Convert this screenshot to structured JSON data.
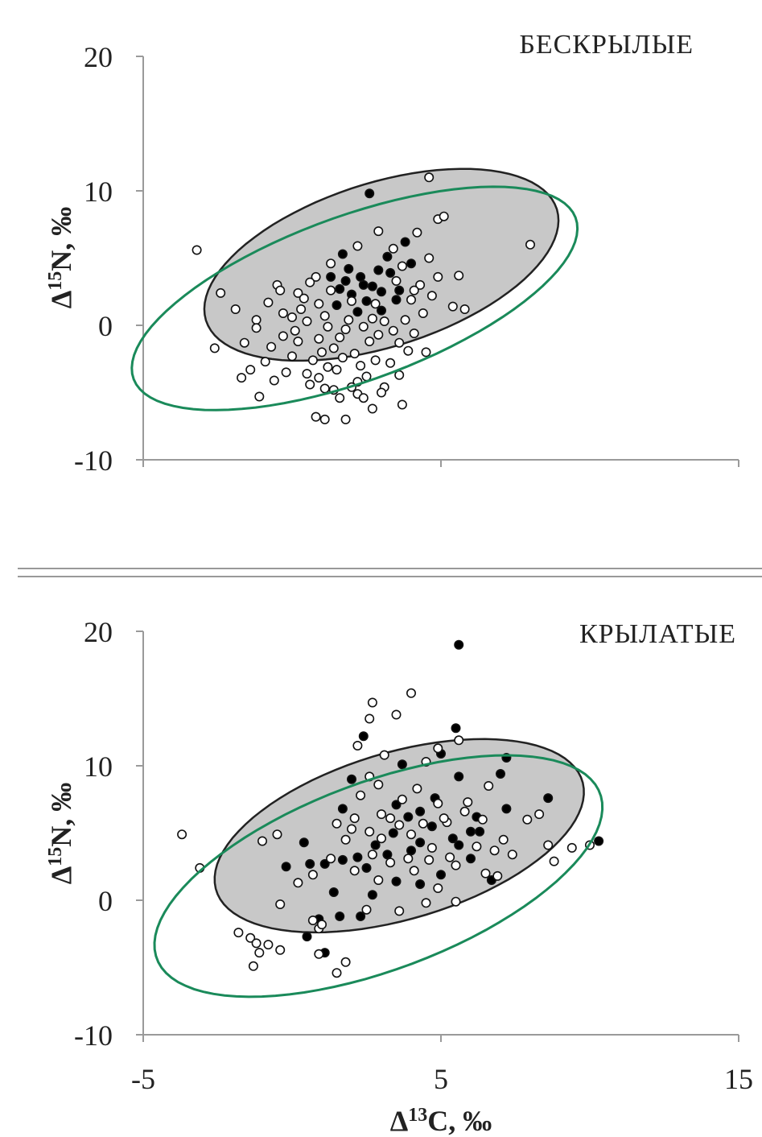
{
  "chart_data": [
    {
      "type": "scatter",
      "title": "БЕСКРЫЛЫЕ",
      "ylabel_delta": "Δ",
      "ylabel_sup": "15",
      "ylabel_rest": "N, ‰",
      "xlim": [
        -5,
        15
      ],
      "ylim": [
        -10,
        20
      ],
      "yticks": [
        "20",
        "10",
        "0",
        "-10"
      ],
      "colors": {
        "green_ellipse": "#1a8a5a",
        "gray_ellipse_fill": "#c8c8c8",
        "filled_point": "#000000",
        "open_point": "#ffffff"
      },
      "ellipses": [
        {
          "name": "green",
          "cx": 2.1,
          "cy": 2.0,
          "rx": 8.5,
          "ry": 3.8,
          "angle_deg": 32
        },
        {
          "name": "gray",
          "cx": 3.0,
          "cy": 4.5,
          "rx": 6.6,
          "ry": 3.8,
          "angle_deg": 32
        }
      ],
      "series": [
        {
          "marker": "filled",
          "points": [
            [
              2.6,
              9.8
            ],
            [
              1.7,
              5.3
            ],
            [
              3.8,
              6.2
            ],
            [
              4.0,
              4.6
            ],
            [
              1.3,
              3.6
            ],
            [
              2.0,
              2.3
            ],
            [
              2.4,
              3.0
            ],
            [
              2.9,
              4.1
            ],
            [
              3.3,
              3.9
            ],
            [
              3.6,
              2.6
            ],
            [
              1.5,
              1.5
            ],
            [
              2.2,
              1.0
            ],
            [
              3.0,
              1.1
            ],
            [
              2.7,
              2.9
            ],
            [
              1.9,
              4.2
            ],
            [
              3.2,
              5.1
            ],
            [
              1.6,
              2.7
            ],
            [
              2.5,
              1.8
            ],
            [
              3.5,
              1.9
            ],
            [
              1.8,
              3.3
            ],
            [
              2.3,
              3.6
            ],
            [
              3.0,
              2.5
            ]
          ]
        },
        {
          "marker": "open",
          "points": [
            [
              -3.2,
              5.6
            ],
            [
              -2.4,
              2.4
            ],
            [
              -1.9,
              1.2
            ],
            [
              -2.6,
              -1.7
            ],
            [
              -1.2,
              0.4
            ],
            [
              -0.8,
              1.7
            ],
            [
              0.2,
              2.4
            ],
            [
              -0.5,
              3.0
            ],
            [
              0.8,
              3.6
            ],
            [
              1.3,
              4.6
            ],
            [
              2.9,
              7.0
            ],
            [
              4.9,
              7.9
            ],
            [
              5.1,
              8.1
            ],
            [
              4.6,
              11.0
            ],
            [
              8.0,
              6.0
            ],
            [
              5.6,
              3.7
            ],
            [
              5.4,
              1.4
            ],
            [
              5.8,
              1.2
            ],
            [
              4.5,
              -2.0
            ],
            [
              3.7,
              -5.9
            ],
            [
              2.7,
              -6.2
            ],
            [
              2.2,
              -5.1
            ],
            [
              1.1,
              -7.0
            ],
            [
              1.8,
              -7.0
            ],
            [
              0.8,
              -6.8
            ],
            [
              -1.1,
              -5.3
            ],
            [
              -1.4,
              -3.3
            ],
            [
              -1.6,
              -1.3
            ],
            [
              -1.2,
              -0.2
            ],
            [
              -0.7,
              -1.6
            ],
            [
              0.0,
              -2.3
            ],
            [
              0.5,
              -3.6
            ],
            [
              0.6,
              -4.4
            ],
            [
              1.1,
              -4.7
            ],
            [
              1.4,
              -4.8
            ],
            [
              1.6,
              -5.4
            ],
            [
              2.2,
              -4.2
            ],
            [
              2.5,
              -3.8
            ],
            [
              3.1,
              -4.6
            ],
            [
              3.6,
              -3.7
            ],
            [
              0.1,
              -0.4
            ],
            [
              0.5,
              0.3
            ],
            [
              0.9,
              -1.0
            ],
            [
              1.1,
              0.7
            ],
            [
              1.4,
              -1.7
            ],
            [
              1.8,
              -0.3
            ],
            [
              2.1,
              -2.1
            ],
            [
              2.6,
              -1.2
            ],
            [
              2.9,
              -0.7
            ],
            [
              3.1,
              0.3
            ],
            [
              3.4,
              -0.4
            ],
            [
              3.8,
              0.4
            ],
            [
              4.1,
              -0.6
            ],
            [
              4.4,
              0.9
            ],
            [
              4.7,
              2.2
            ],
            [
              4.3,
              3.0
            ],
            [
              4.0,
              1.9
            ],
            [
              3.7,
              4.4
            ],
            [
              4.6,
              5.0
            ],
            [
              0.3,
              1.2
            ],
            [
              0.0,
              0.6
            ],
            [
              -0.3,
              -0.8
            ],
            [
              0.7,
              -2.6
            ],
            [
              1.2,
              -3.1
            ],
            [
              1.7,
              -2.4
            ],
            [
              2.3,
              -3.0
            ],
            [
              2.8,
              -2.6
            ],
            [
              3.3,
              -2.8
            ],
            [
              3.6,
              -1.3
            ],
            [
              0.4,
              2.0
            ],
            [
              0.9,
              1.6
            ],
            [
              1.3,
              2.6
            ],
            [
              0.6,
              3.2
            ],
            [
              -0.9,
              -2.7
            ],
            [
              -0.6,
              -4.1
            ],
            [
              -0.2,
              -3.5
            ],
            [
              0.9,
              -3.9
            ],
            [
              1.5,
              -3.3
            ],
            [
              2.0,
              -4.6
            ],
            [
              2.4,
              -5.4
            ],
            [
              3.0,
              -5.0
            ],
            [
              -1.7,
              -3.9
            ],
            [
              -0.3,
              0.9
            ],
            [
              2.0,
              1.8
            ],
            [
              2.7,
              0.5
            ],
            [
              3.9,
              -1.9
            ],
            [
              4.9,
              3.6
            ],
            [
              4.2,
              6.9
            ],
            [
              3.4,
              5.7
            ],
            [
              2.2,
              5.9
            ],
            [
              1.6,
              -0.9
            ],
            [
              2.4,
              -0.1
            ],
            [
              1.0,
              -2.0
            ],
            [
              0.2,
              -1.2
            ],
            [
              -0.4,
              2.6
            ],
            [
              4.1,
              2.6
            ],
            [
              3.5,
              3.3
            ],
            [
              2.8,
              1.6
            ],
            [
              1.9,
              0.4
            ],
            [
              1.2,
              -0.1
            ]
          ]
        }
      ]
    },
    {
      "type": "scatter",
      "title": "КРЫЛАТЫЕ",
      "ylabel_delta": "Δ",
      "ylabel_sup": "15",
      "ylabel_rest": "N, ‰",
      "xlabel_delta": "Δ",
      "xlabel_sup": "13",
      "xlabel_rest": "C, ‰",
      "xlim": [
        -5,
        15
      ],
      "ylim": [
        -10,
        20
      ],
      "xticks": [
        "-5",
        "5",
        "15"
      ],
      "yticks": [
        "20",
        "10",
        "0",
        "-10"
      ],
      "colors": {
        "green_ellipse": "#1a8a5a",
        "gray_ellipse_fill": "#c8c8c8",
        "filled_point": "#000000",
        "open_point": "#ffffff"
      },
      "ellipses": [
        {
          "name": "green",
          "cx": 2.9,
          "cy": 1.8,
          "rx": 8.6,
          "ry": 4.3,
          "angle_deg": 34
        },
        {
          "name": "gray",
          "cx": 3.6,
          "cy": 4.8,
          "rx": 6.8,
          "ry": 3.9,
          "angle_deg": 30
        }
      ],
      "series": [
        {
          "marker": "filled",
          "points": [
            [
              5.6,
              19.0
            ],
            [
              5.5,
              12.8
            ],
            [
              2.4,
              12.2
            ],
            [
              7.2,
              10.6
            ],
            [
              5.0,
              10.9
            ],
            [
              5.6,
              9.2
            ],
            [
              7.0,
              9.4
            ],
            [
              2.0,
              9.0
            ],
            [
              1.7,
              6.8
            ],
            [
              3.5,
              7.1
            ],
            [
              4.8,
              7.6
            ],
            [
              6.2,
              6.2
            ],
            [
              7.2,
              6.8
            ],
            [
              8.6,
              7.6
            ],
            [
              10.3,
              4.4
            ],
            [
              6.0,
              5.1
            ],
            [
              5.6,
              4.1
            ],
            [
              4.3,
              4.3
            ],
            [
              4.0,
              3.7
            ],
            [
              3.4,
              5.0
            ],
            [
              2.8,
              4.1
            ],
            [
              2.2,
              3.2
            ],
            [
              1.7,
              3.0
            ],
            [
              0.6,
              2.7
            ],
            [
              -0.2,
              2.5
            ],
            [
              0.4,
              4.3
            ],
            [
              1.1,
              2.7
            ],
            [
              1.4,
              0.6
            ],
            [
              0.9,
              -1.4
            ],
            [
              0.5,
              -2.7
            ],
            [
              1.6,
              -1.2
            ],
            [
              1.1,
              -3.9
            ],
            [
              2.3,
              -1.2
            ],
            [
              2.7,
              0.4
            ],
            [
              3.5,
              1.4
            ],
            [
              4.3,
              1.2
            ],
            [
              5.0,
              1.9
            ],
            [
              6.7,
              1.5
            ],
            [
              6.0,
              3.1
            ],
            [
              4.7,
              5.5
            ],
            [
              3.9,
              6.2
            ],
            [
              4.3,
              6.6
            ],
            [
              3.2,
              3.4
            ],
            [
              2.5,
              2.4
            ],
            [
              5.4,
              4.6
            ],
            [
              6.3,
              5.1
            ],
            [
              3.7,
              10.1
            ]
          ]
        },
        {
          "marker": "open",
          "points": [
            [
              -3.7,
              4.9
            ],
            [
              -3.1,
              2.4
            ],
            [
              -0.5,
              4.9
            ],
            [
              -1.0,
              4.4
            ],
            [
              -0.4,
              -0.3
            ],
            [
              -1.8,
              -2.4
            ],
            [
              -1.4,
              -2.8
            ],
            [
              -1.2,
              -3.2
            ],
            [
              -0.8,
              -3.3
            ],
            [
              -0.4,
              -3.7
            ],
            [
              -1.3,
              -4.9
            ],
            [
              -1.1,
              -3.9
            ],
            [
              0.7,
              -1.5
            ],
            [
              0.9,
              -2.1
            ],
            [
              1.0,
              -1.8
            ],
            [
              1.5,
              -5.4
            ],
            [
              1.8,
              -4.6
            ],
            [
              0.9,
              -4.0
            ],
            [
              2.5,
              -0.7
            ],
            [
              2.1,
              2.2
            ],
            [
              2.9,
              1.5
            ],
            [
              3.6,
              -0.8
            ],
            [
              4.5,
              -0.2
            ],
            [
              5.5,
              -0.1
            ],
            [
              4.9,
              0.9
            ],
            [
              2.7,
              14.7
            ],
            [
              3.5,
              13.8
            ],
            [
              4.0,
              15.4
            ],
            [
              2.6,
              13.5
            ],
            [
              2.2,
              11.5
            ],
            [
              2.6,
              9.2
            ],
            [
              3.1,
              10.8
            ],
            [
              4.5,
              10.3
            ],
            [
              4.9,
              11.3
            ],
            [
              5.6,
              11.9
            ],
            [
              6.6,
              8.5
            ],
            [
              7.9,
              6.0
            ],
            [
              8.3,
              6.4
            ],
            [
              8.6,
              4.1
            ],
            [
              8.8,
              2.9
            ],
            [
              9.4,
              3.9
            ],
            [
              10.0,
              4.1
            ],
            [
              7.4,
              3.4
            ],
            [
              7.1,
              4.5
            ],
            [
              6.5,
              2.0
            ],
            [
              6.9,
              1.8
            ],
            [
              5.3,
              3.2
            ],
            [
              4.6,
              3.0
            ],
            [
              4.0,
              4.9
            ],
            [
              3.0,
              6.4
            ],
            [
              2.6,
              5.1
            ],
            [
              2.1,
              6.1
            ],
            [
              1.8,
              4.5
            ],
            [
              1.3,
              3.1
            ],
            [
              0.7,
              1.9
            ],
            [
              0.2,
              1.3
            ],
            [
              3.3,
              2.8
            ],
            [
              3.9,
              3.1
            ],
            [
              4.7,
              3.9
            ],
            [
              5.2,
              5.8
            ],
            [
              5.8,
              6.6
            ],
            [
              6.2,
              4.0
            ],
            [
              4.9,
              7.2
            ],
            [
              4.2,
              8.3
            ],
            [
              3.7,
              7.5
            ],
            [
              2.9,
              8.6
            ],
            [
              2.3,
              7.8
            ],
            [
              3.6,
              5.6
            ],
            [
              3.0,
              4.6
            ],
            [
              4.4,
              5.7
            ],
            [
              5.1,
              6.1
            ],
            [
              5.9,
              7.3
            ],
            [
              6.4,
              6.0
            ],
            [
              2.0,
              5.3
            ],
            [
              2.7,
              3.4
            ],
            [
              3.3,
              6.1
            ],
            [
              4.1,
              2.2
            ],
            [
              5.5,
              2.6
            ],
            [
              6.8,
              3.7
            ],
            [
              1.5,
              5.7
            ]
          ]
        }
      ]
    }
  ]
}
